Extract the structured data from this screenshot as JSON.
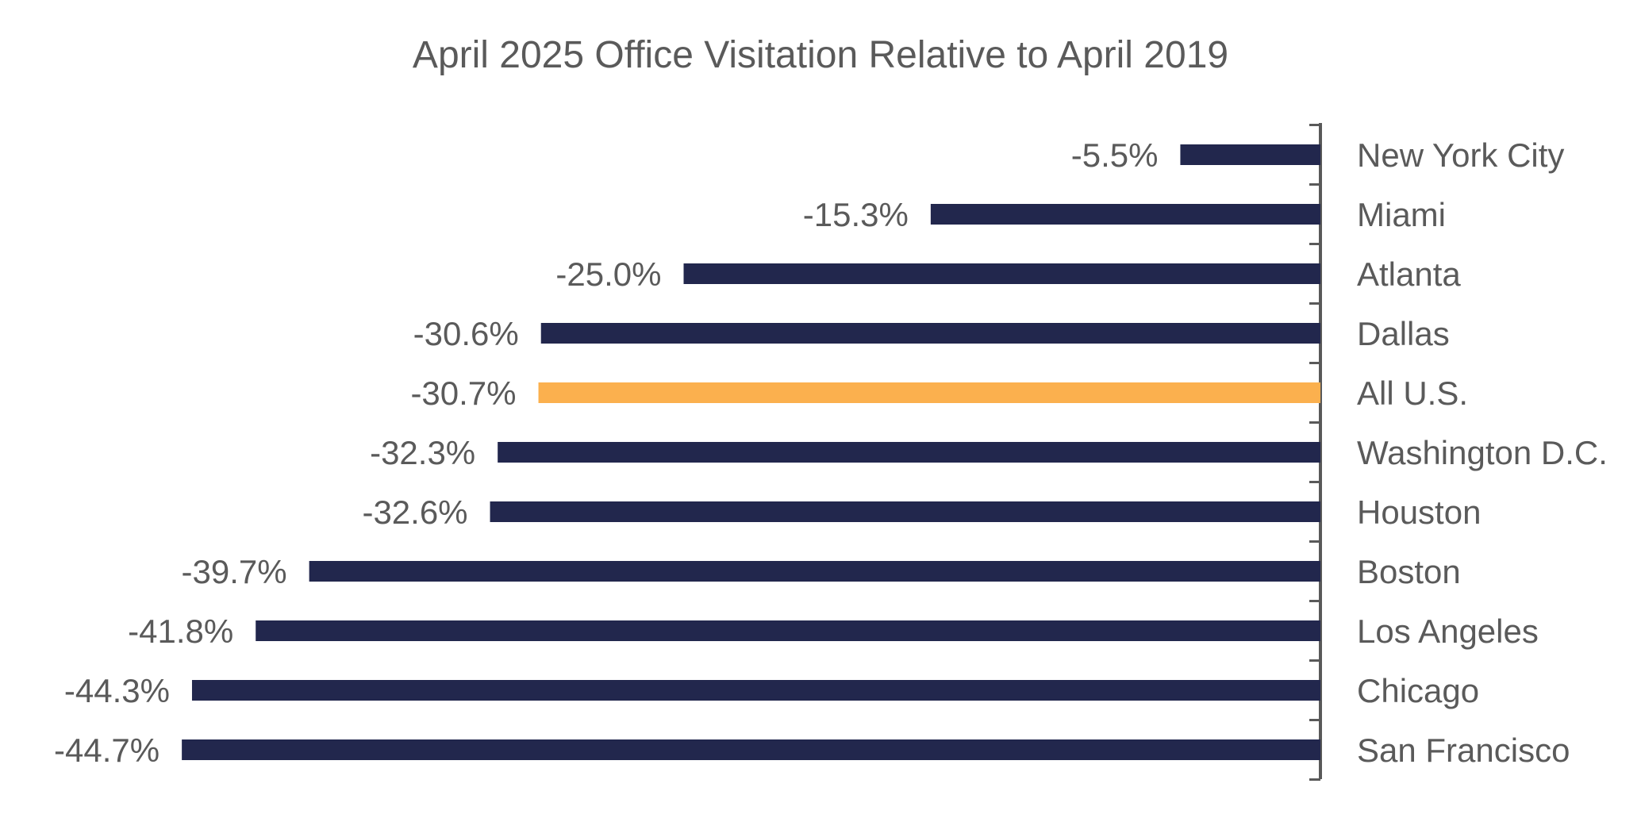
{
  "chart_data": {
    "type": "bar",
    "orientation": "horizontal",
    "title": "April 2025 Office Visitation Relative to April 2019",
    "categories": [
      "New York City",
      "Miami",
      "Atlanta",
      "Dallas",
      "All U.S.",
      "Washington D.C.",
      "Houston",
      "Boston",
      "Los Angeles",
      "Chicago",
      "San Francisco"
    ],
    "values": [
      -5.5,
      -15.3,
      -25.0,
      -30.6,
      -30.7,
      -32.3,
      -32.6,
      -39.7,
      -41.8,
      -44.3,
      -44.7
    ],
    "value_labels": [
      "-5.5%",
      "-15.3%",
      "-25.0%",
      "-30.6%",
      "-30.7%",
      "-32.3%",
      "-32.6%",
      "-39.7%",
      "-41.8%",
      "-44.3%",
      "-44.7%"
    ],
    "colors": {
      "default": "#22274d",
      "highlight": "#fbb04e",
      "highlight_category": "All U.S."
    },
    "xlim": [
      -50,
      0
    ],
    "grid": false,
    "legend": "none"
  }
}
